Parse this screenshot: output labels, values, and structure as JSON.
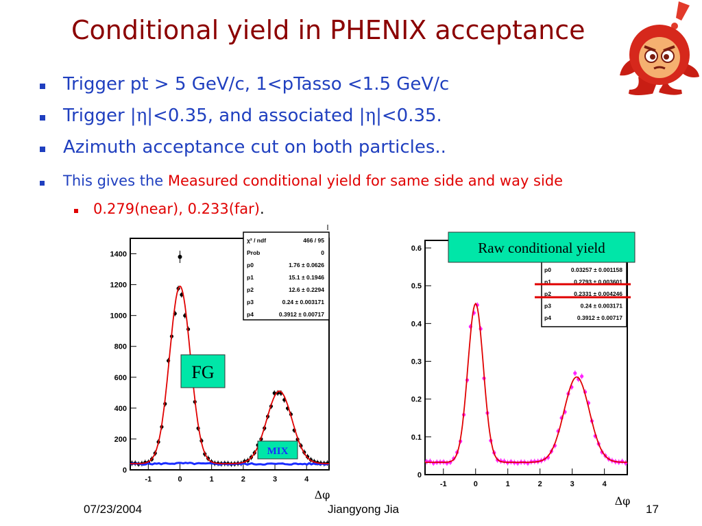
{
  "title": "Conditional yield in PHENIX acceptance",
  "bullets": {
    "b1": "Trigger pt > 5 GeV/c, 1<pTasso <1.5 GeV/c",
    "b2_a": "Trigger |",
    "b2_eta1": "η",
    "b2_b": "|<0.35, and associated |",
    "b2_eta2": "η",
    "b2_c": "|<0.35.",
    "b3": "Azimuth acceptance cut on both particles..",
    "b4_a": "This gives the ",
    "b4_b": "Measured conditional yield for same side and way side",
    "b5_a": "0.279(near), 0.233(far)",
    "b5_b": "."
  },
  "footer": {
    "date": "07/23/2004",
    "author": "Jiangyong Jia",
    "page": "17"
  },
  "labels": {
    "fg": "FG",
    "mix": "MIX",
    "raw": "Raw conditional yield",
    "dphi": "Δφ"
  },
  "colors": {
    "title": "#8b0000",
    "bullet": "#1f3fbf",
    "highlight": "#e00000",
    "label_box": "#00e6a8",
    "fit_line": "#e00000",
    "fg_points": "#000000",
    "mix_points": "#1a2cff",
    "yield_points": "#ff22ff"
  },
  "chart_data": [
    {
      "type": "scatter",
      "title": "",
      "xlabel": "Δφ",
      "ylabel": "",
      "xlim": [
        -1.57,
        4.71
      ],
      "ylim": [
        0,
        1500
      ],
      "x_ticks": [
        -1,
        0,
        1,
        2,
        3,
        4
      ],
      "y_ticks": [
        0,
        200,
        400,
        600,
        800,
        1000,
        1200,
        1400
      ],
      "series": [
        {
          "name": "FG",
          "params": {
            "b": 40,
            "a1": 1150,
            "a2": 470,
            "s1": 0.33,
            "s2": 0.4,
            "mu2": 3.14
          }
        },
        {
          "name": "MIX",
          "params": {
            "b": 38,
            "a": 5
          }
        }
      ],
      "outlier": {
        "x": 0.0,
        "y": 1380
      },
      "stats_box": [
        [
          "χ² / ndf",
          "466 / 95"
        ],
        [
          "Prob",
          "0"
        ],
        [
          "p0",
          "1.76 ± 0.0626"
        ],
        [
          "p1",
          "15.1 ± 0.1946"
        ],
        [
          "p2",
          "12.6 ± 0.2294"
        ],
        [
          "p3",
          "0.24 ± 0.003171"
        ],
        [
          "p4",
          "0.3912 ± 0.00717"
        ]
      ]
    },
    {
      "type": "scatter",
      "title": "",
      "xlabel": "Δφ",
      "ylabel": "",
      "xlim": [
        -1.57,
        4.71
      ],
      "ylim": [
        0,
        0.62
      ],
      "x_ticks": [
        -1,
        0,
        1,
        2,
        3,
        4
      ],
      "y_ticks": [
        0,
        0.1,
        0.2,
        0.3,
        0.4,
        0.5,
        0.6
      ],
      "series": [
        {
          "name": "Raw conditional yield",
          "params": {
            "b": 0.0326,
            "a1": 0.42,
            "a2": 0.226,
            "s1": 0.24,
            "s2": 0.39,
            "mu2": 3.14
          }
        }
      ],
      "stats_box": [
        [
          "p0",
          "0.03257 ± 0.001158"
        ],
        [
          "p1",
          "0.2793 ± 0.003601"
        ],
        [
          "p2",
          "0.2331 ± 0.004246"
        ],
        [
          "p3",
          "0.24 ± 0.003171"
        ],
        [
          "p4",
          "0.3912 ± 0.00717"
        ]
      ]
    }
  ]
}
